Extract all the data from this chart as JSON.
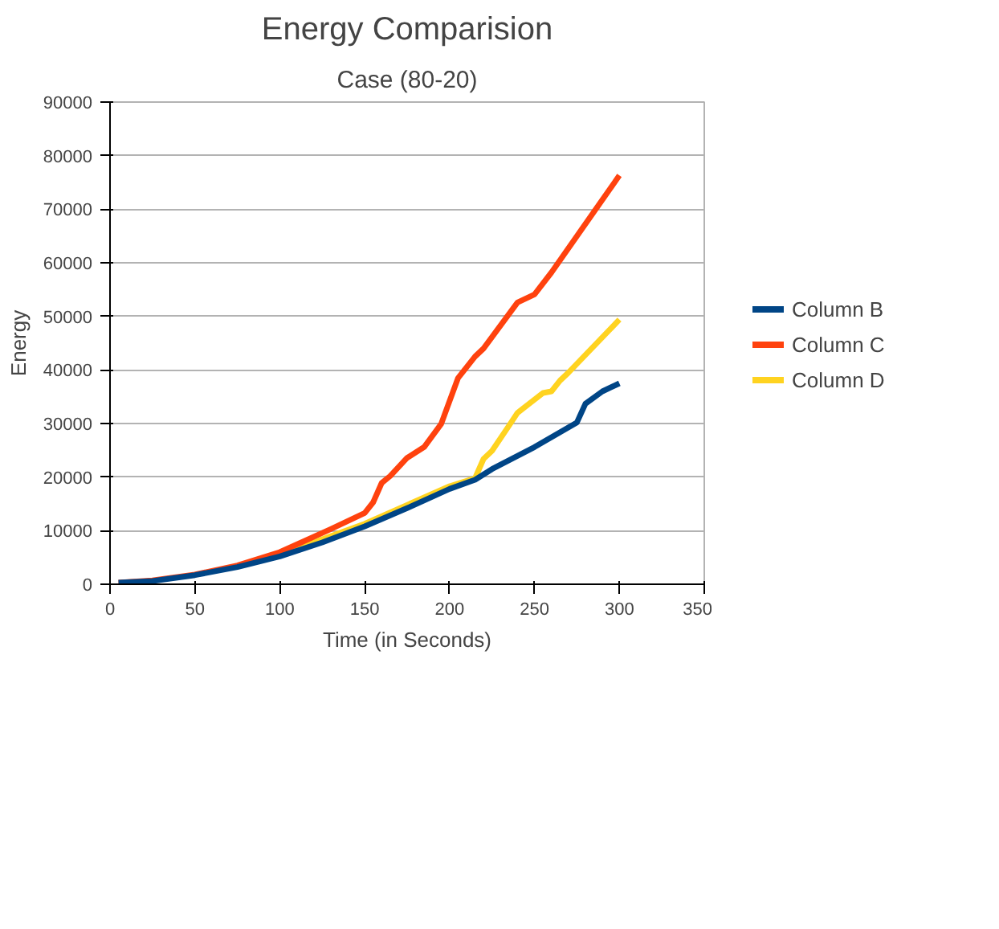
{
  "chart_data": {
    "type": "line",
    "title": "Energy Comparision",
    "subtitle": "Case (80-20)",
    "xlabel": "Time (in Seconds)",
    "ylabel": "Energy",
    "xlim": [
      0,
      350
    ],
    "xticks": [
      0,
      50,
      100,
      150,
      200,
      250,
      300,
      350
    ],
    "ylim": [
      0,
      90000
    ],
    "yticks": [
      0,
      10000,
      20000,
      30000,
      40000,
      50000,
      60000,
      70000,
      80000,
      90000
    ],
    "grid": "y",
    "legend": "right",
    "line_style": "solid",
    "marker": "none",
    "series": [
      {
        "name": "Column B",
        "color": "#004586",
        "x": [
          5,
          25,
          50,
          75,
          100,
          125,
          150,
          175,
          200,
          215,
          225,
          250,
          275,
          280,
          290,
          300
        ],
        "values": [
          300,
          600,
          1700,
          3200,
          5200,
          7800,
          10800,
          14200,
          17800,
          19500,
          21500,
          25600,
          30200,
          33700,
          36000,
          37500
        ]
      },
      {
        "name": "Column C",
        "color": "#ff420e",
        "x": [
          5,
          25,
          50,
          75,
          100,
          130,
          150,
          155,
          160,
          165,
          175,
          185,
          195,
          205,
          215,
          220,
          240,
          250,
          260,
          300
        ],
        "values": [
          300,
          700,
          1800,
          3500,
          6000,
          10300,
          13300,
          15300,
          18900,
          20200,
          23600,
          25600,
          29900,
          38500,
          42500,
          44000,
          52600,
          54100,
          58200,
          76300
        ]
      },
      {
        "name": "Column D",
        "color": "#ffd320",
        "x": [
          75,
          100,
          150,
          200,
          215,
          220,
          225,
          235,
          240,
          255,
          260,
          265,
          270,
          300
        ],
        "values": [
          3300,
          5500,
          11300,
          18300,
          19800,
          23400,
          24900,
          29600,
          32000,
          35700,
          36000,
          38000,
          39500,
          49400
        ]
      }
    ]
  }
}
